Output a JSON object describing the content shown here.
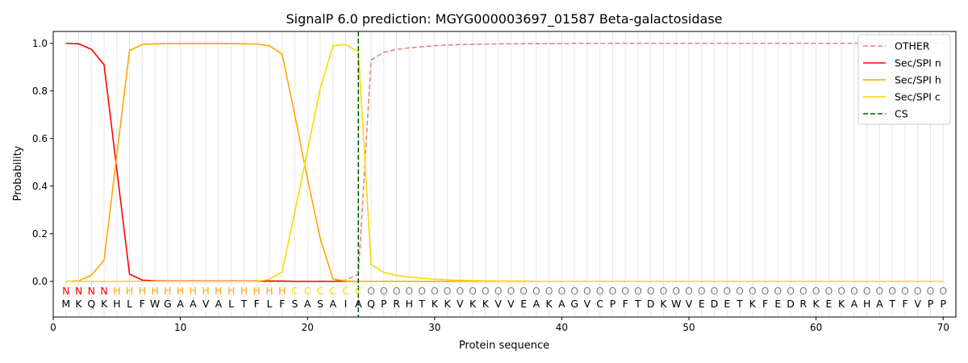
{
  "chart_data": {
    "type": "line",
    "title": "SignalP 6.0 prediction: MGYG000003697_01587 Beta-galactosidase",
    "xlabel": "Protein sequence",
    "ylabel": "Probability",
    "xlim": [
      0,
      71
    ],
    "ylim": [
      -0.15,
      1.05
    ],
    "x_ticks": [
      0,
      10,
      20,
      30,
      40,
      50,
      60,
      70
    ],
    "y_ticks": [
      0.0,
      0.2,
      0.4,
      0.6,
      0.8,
      1.0
    ],
    "x_tick_labels": [
      "0",
      "10",
      "20",
      "30",
      "40",
      "50",
      "60",
      "70"
    ],
    "y_tick_labels": [
      "0.0",
      "0.2",
      "0.4",
      "0.6",
      "0.8",
      "1.0"
    ],
    "grid": "vertical lines at each residue position",
    "legend_position": "upper right",
    "sequence": [
      "M",
      "K",
      "Q",
      "K",
      "H",
      "L",
      "F",
      "W",
      "G",
      "A",
      "A",
      "V",
      "A",
      "L",
      "T",
      "F",
      "L",
      "F",
      "S",
      "A",
      "S",
      "A",
      "I",
      "A",
      "Q",
      "P",
      "R",
      "H",
      "T",
      "K",
      "K",
      "V",
      "K",
      "K",
      "V",
      "V",
      "E",
      "A",
      "K",
      "A",
      "G",
      "V",
      "C",
      "P",
      "F",
      "T",
      "D",
      "K",
      "W",
      "V",
      "E",
      "D",
      "E",
      "T",
      "K",
      "F",
      "E",
      "D",
      "R",
      "K",
      "E",
      "K",
      "A",
      "H",
      "A",
      "T",
      "F",
      "V",
      "P",
      "P"
    ],
    "regions": [
      "N",
      "N",
      "N",
      "N",
      "H",
      "H",
      "H",
      "H",
      "H",
      "H",
      "H",
      "H",
      "H",
      "H",
      "H",
      "H",
      "H",
      "H",
      "C",
      "C",
      "C",
      "C",
      "C",
      "C",
      "O",
      "O",
      "O",
      "O",
      "O",
      "O",
      "O",
      "O",
      "O",
      "O",
      "O",
      "O",
      "O",
      "O",
      "O",
      "O",
      "O",
      "O",
      "O",
      "O",
      "O",
      "O",
      "O",
      "O",
      "O",
      "O",
      "O",
      "O",
      "O",
      "O",
      "O",
      "O",
      "O",
      "O",
      "O",
      "O",
      "O",
      "O",
      "O",
      "O",
      "O",
      "O",
      "O",
      "O",
      "O",
      "O"
    ],
    "region_colors": {
      "N": "#ff0000",
      "H": "#ffa500",
      "C": "#ffd700",
      "O": "#808080"
    },
    "cleavage_site": 24,
    "series": [
      {
        "name": "OTHER",
        "color": "#f08080",
        "dash": "dashed",
        "values": [
          0.0,
          0.0,
          0.0,
          0.0,
          0.0,
          0.0,
          0.0,
          0.0,
          0.0,
          0.0,
          0.0,
          0.0,
          0.0,
          0.0,
          0.0,
          0.0,
          0.0,
          0.0,
          0.0,
          0.0,
          0.0,
          0.0,
          0.005,
          0.03,
          0.93,
          0.962,
          0.975,
          0.981,
          0.986,
          0.99,
          0.993,
          0.995,
          0.996,
          0.997,
          0.998,
          0.998,
          0.999,
          0.999,
          0.999,
          0.999,
          1.0,
          1.0,
          1.0,
          1.0,
          1.0,
          1.0,
          1.0,
          1.0,
          1.0,
          1.0,
          1.0,
          1.0,
          1.0,
          1.0,
          1.0,
          1.0,
          1.0,
          1.0,
          1.0,
          1.0,
          1.0,
          1.0,
          1.0,
          1.0,
          1.0,
          1.0,
          1.0,
          1.0,
          1.0,
          1.0
        ]
      },
      {
        "name": "Sec/SPI n",
        "color": "#ff0000",
        "dash": "solid",
        "values": [
          1.0,
          0.998,
          0.975,
          0.91,
          0.47,
          0.03,
          0.005,
          0.002,
          0.001,
          0.001,
          0.001,
          0.001,
          0.001,
          0.001,
          0.001,
          0.001,
          0.001,
          0.001,
          0.0,
          0.0,
          0.0,
          0.0,
          0.0,
          0.0,
          0.0,
          0.0,
          0.0,
          0.0,
          0.0,
          0.0,
          0.0,
          0.0,
          0.0,
          0.0,
          0.0,
          0.0,
          0.0,
          0.0,
          0.0,
          0.0,
          0.0,
          0.0,
          0.0,
          0.0,
          0.0,
          0.0,
          0.0,
          0.0,
          0.0,
          0.0,
          0.0,
          0.0,
          0.0,
          0.0,
          0.0,
          0.0,
          0.0,
          0.0,
          0.0,
          0.0,
          0.0,
          0.0,
          0.0,
          0.0,
          0.0,
          0.0,
          0.0,
          0.0,
          0.0,
          0.0
        ]
      },
      {
        "name": "Sec/SPI h",
        "color": "#ffa500",
        "dash": "solid",
        "values": [
          0.0,
          0.002,
          0.025,
          0.09,
          0.53,
          0.97,
          0.995,
          0.998,
          0.999,
          0.999,
          0.999,
          0.999,
          0.999,
          0.999,
          0.998,
          0.997,
          0.99,
          0.955,
          0.7,
          0.43,
          0.18,
          0.01,
          0.001,
          0.0,
          0.0,
          0.0,
          0.0,
          0.0,
          0.0,
          0.0,
          0.0,
          0.0,
          0.0,
          0.0,
          0.0,
          0.0,
          0.0,
          0.0,
          0.0,
          0.0,
          0.0,
          0.0,
          0.0,
          0.0,
          0.0,
          0.0,
          0.0,
          0.0,
          0.0,
          0.0,
          0.0,
          0.0,
          0.0,
          0.0,
          0.0,
          0.0,
          0.0,
          0.0,
          0.0,
          0.0,
          0.0,
          0.0,
          0.0,
          0.0,
          0.0,
          0.0,
          0.0,
          0.0,
          0.0,
          0.0
        ]
      },
      {
        "name": "Sec/SPI c",
        "color": "#ffd700",
        "dash": "solid",
        "values": [
          0.0,
          0.0,
          0.0,
          0.0,
          0.0,
          0.0,
          0.0,
          0.0,
          0.0,
          0.0,
          0.0,
          0.0,
          0.0,
          0.0,
          0.0,
          0.0,
          0.008,
          0.04,
          0.29,
          0.55,
          0.81,
          0.99,
          0.995,
          0.965,
          0.07,
          0.038,
          0.025,
          0.018,
          0.013,
          0.009,
          0.006,
          0.004,
          0.003,
          0.002,
          0.001,
          0.001,
          0.001,
          0.0,
          0.0,
          0.0,
          0.0,
          0.0,
          0.0,
          0.0,
          0.0,
          0.0,
          0.0,
          0.0,
          0.0,
          0.0,
          0.0,
          0.0,
          0.0,
          0.0,
          0.0,
          0.0,
          0.0,
          0.0,
          0.0,
          0.0,
          0.0,
          0.0,
          0.0,
          0.0,
          0.0,
          0.0,
          0.0,
          0.0,
          0.0,
          0.0
        ]
      }
    ],
    "legend": [
      {
        "label": "OTHER",
        "color": "#f08080",
        "dash": "dashed"
      },
      {
        "label": "Sec/SPI n",
        "color": "#ff0000",
        "dash": "solid"
      },
      {
        "label": "Sec/SPI h",
        "color": "#ffa500",
        "dash": "solid"
      },
      {
        "label": "Sec/SPI c",
        "color": "#ffd700",
        "dash": "solid"
      },
      {
        "label": "CS",
        "color": "#006400",
        "dash": "dashed"
      }
    ]
  }
}
